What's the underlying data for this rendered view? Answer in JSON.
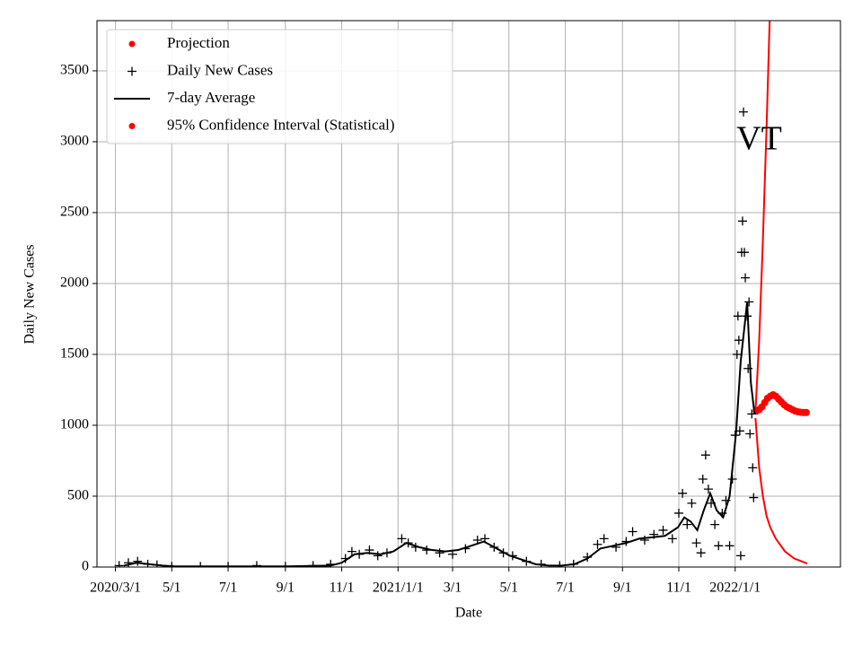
{
  "chart_data": {
    "type": "line",
    "xlabel": "Date",
    "ylabel": "Daily New Cases",
    "xlim": [
      "2020-02-10",
      "2022-04-25"
    ],
    "ylim": [
      0,
      3854
    ],
    "yticks": [
      0,
      500,
      1000,
      1500,
      2000,
      2500,
      3000,
      3500
    ],
    "xticks": [
      {
        "value": "2020-03-01",
        "label": "2020/3/1"
      },
      {
        "value": "2020-05-01",
        "label": "5/1"
      },
      {
        "value": "2020-07-01",
        "label": "7/1"
      },
      {
        "value": "2020-09-01",
        "label": "9/1"
      },
      {
        "value": "2020-11-01",
        "label": "11/1"
      },
      {
        "value": "2021-01-01",
        "label": "2021/1/1"
      },
      {
        "value": "2021-03-01",
        "label": "3/1"
      },
      {
        "value": "2021-05-01",
        "label": "5/1"
      },
      {
        "value": "2021-07-01",
        "label": "7/1"
      },
      {
        "value": "2021-09-01",
        "label": "9/1"
      },
      {
        "value": "2021-11-01",
        "label": "11/1"
      },
      {
        "value": "2022-01-01",
        "label": "2022/1/1"
      }
    ],
    "grid": true,
    "legend": "upper left",
    "annotations": [
      {
        "text": "VT",
        "x": "2022-01-27",
        "y": 3000
      }
    ],
    "series": [
      {
        "name": "Projection",
        "color": "#ff0000",
        "marker": "dot",
        "x": [
          "2022-01-24",
          "2022-01-27",
          "2022-01-30",
          "2022-02-02",
          "2022-02-05",
          "2022-02-08",
          "2022-02-11",
          "2022-02-14",
          "2022-02-17",
          "2022-02-20",
          "2022-02-23",
          "2022-02-26",
          "2022-03-01",
          "2022-03-04",
          "2022-03-07",
          "2022-03-10",
          "2022-03-13",
          "2022-03-16",
          "2022-03-19"
        ],
        "values": [
          1100,
          1110,
          1130,
          1160,
          1190,
          1205,
          1215,
          1205,
          1185,
          1165,
          1145,
          1130,
          1120,
          1110,
          1100,
          1095,
          1092,
          1090,
          1090
        ]
      },
      {
        "name": "Daily New Cases",
        "color": "#000000",
        "marker": "plus",
        "x": [
          "2020-03-05",
          "2020-03-15",
          "2020-03-25",
          "2020-04-05",
          "2020-04-15",
          "2020-05-01",
          "2020-06-01",
          "2020-07-01",
          "2020-08-01",
          "2020-09-01",
          "2020-10-01",
          "2020-10-20",
          "2020-11-05",
          "2020-11-12",
          "2020-11-20",
          "2020-12-01",
          "2020-12-10",
          "2020-12-20",
          "2021-01-05",
          "2021-01-12",
          "2021-01-20",
          "2021-02-01",
          "2021-02-15",
          "2021-03-01",
          "2021-03-15",
          "2021-03-28",
          "2021-04-05",
          "2021-04-15",
          "2021-04-25",
          "2021-05-05",
          "2021-05-20",
          "2021-06-05",
          "2021-06-25",
          "2021-07-10",
          "2021-07-25",
          "2021-08-05",
          "2021-08-12",
          "2021-08-25",
          "2021-09-05",
          "2021-09-12",
          "2021-09-25",
          "2021-10-05",
          "2021-10-15",
          "2021-10-25",
          "2021-11-01",
          "2021-11-05",
          "2021-11-10",
          "2021-11-15",
          "2021-11-20",
          "2021-11-25",
          "2021-11-27",
          "2021-11-30",
          "2021-12-03",
          "2021-12-06",
          "2021-12-10",
          "2021-12-14",
          "2021-12-18",
          "2021-12-22",
          "2021-12-26",
          "2021-12-29",
          "2022-01-01",
          "2022-01-03",
          "2022-01-04",
          "2022-01-05",
          "2022-01-06",
          "2022-01-07",
          "2022-01-08",
          "2022-01-09",
          "2022-01-10",
          "2022-01-11",
          "2022-01-12",
          "2022-01-14",
          "2022-01-15",
          "2022-01-16",
          "2022-01-17",
          "2022-01-19",
          "2022-01-20",
          "2022-01-21"
        ],
        "values": [
          10,
          30,
          40,
          20,
          15,
          5,
          5,
          5,
          10,
          5,
          10,
          20,
          60,
          110,
          90,
          120,
          80,
          100,
          200,
          170,
          140,
          120,
          100,
          90,
          130,
          190,
          200,
          140,
          100,
          80,
          40,
          20,
          10,
          20,
          70,
          160,
          200,
          140,
          180,
          250,
          190,
          230,
          260,
          200,
          380,
          520,
          300,
          450,
          170,
          100,
          620,
          790,
          550,
          450,
          300,
          150,
          380,
          470,
          150,
          620,
          930,
          1500,
          1770,
          1600,
          960,
          80,
          2220,
          2440,
          3210,
          2220,
          2040,
          1770,
          1400,
          1870,
          940,
          1080,
          700,
          490
        ]
      },
      {
        "name": "7-day Average",
        "color": "#000000",
        "marker": "line",
        "x": [
          "2020-03-10",
          "2020-03-24",
          "2020-04-07",
          "2020-04-21",
          "2020-05-05",
          "2020-07-01",
          "2020-09-01",
          "2020-10-20",
          "2020-11-01",
          "2020-11-15",
          "2020-11-29",
          "2020-12-13",
          "2020-12-27",
          "2021-01-10",
          "2021-01-24",
          "2021-02-07",
          "2021-02-21",
          "2021-03-07",
          "2021-03-21",
          "2021-04-04",
          "2021-04-18",
          "2021-05-02",
          "2021-05-16",
          "2021-05-30",
          "2021-06-13",
          "2021-06-27",
          "2021-07-11",
          "2021-07-25",
          "2021-08-08",
          "2021-08-22",
          "2021-09-05",
          "2021-09-19",
          "2021-10-03",
          "2021-10-17",
          "2021-10-31",
          "2021-11-07",
          "2021-11-14",
          "2021-11-21",
          "2021-11-28",
          "2021-12-05",
          "2021-12-12",
          "2021-12-19",
          "2021-12-26",
          "2022-01-02",
          "2022-01-07",
          "2022-01-14",
          "2022-01-18",
          "2022-01-22"
        ],
        "values": [
          10,
          30,
          20,
          10,
          5,
          5,
          5,
          10,
          30,
          90,
          100,
          90,
          110,
          170,
          140,
          120,
          110,
          120,
          150,
          180,
          130,
          80,
          50,
          20,
          10,
          10,
          20,
          60,
          130,
          150,
          170,
          200,
          210,
          220,
          280,
          350,
          320,
          260,
          400,
          520,
          400,
          350,
          500,
          950,
          1450,
          1870,
          1300,
          1080
        ]
      },
      {
        "name": "95% Confidence Interval (Statistical)",
        "color": "#ff0000",
        "marker": "dot",
        "x": [
          "2022-01-23",
          "2022-01-27",
          "2022-01-31",
          "2022-02-04",
          "2022-02-08",
          "2022-02-14",
          "2022-02-24",
          "2022-03-06",
          "2022-03-20"
        ],
        "upper": [
          1100,
          1600,
          2300,
          3100,
          4000,
          null,
          null,
          null,
          null
        ],
        "lower": [
          1050,
          700,
          500,
          360,
          280,
          200,
          110,
          60,
          25
        ]
      }
    ]
  }
}
